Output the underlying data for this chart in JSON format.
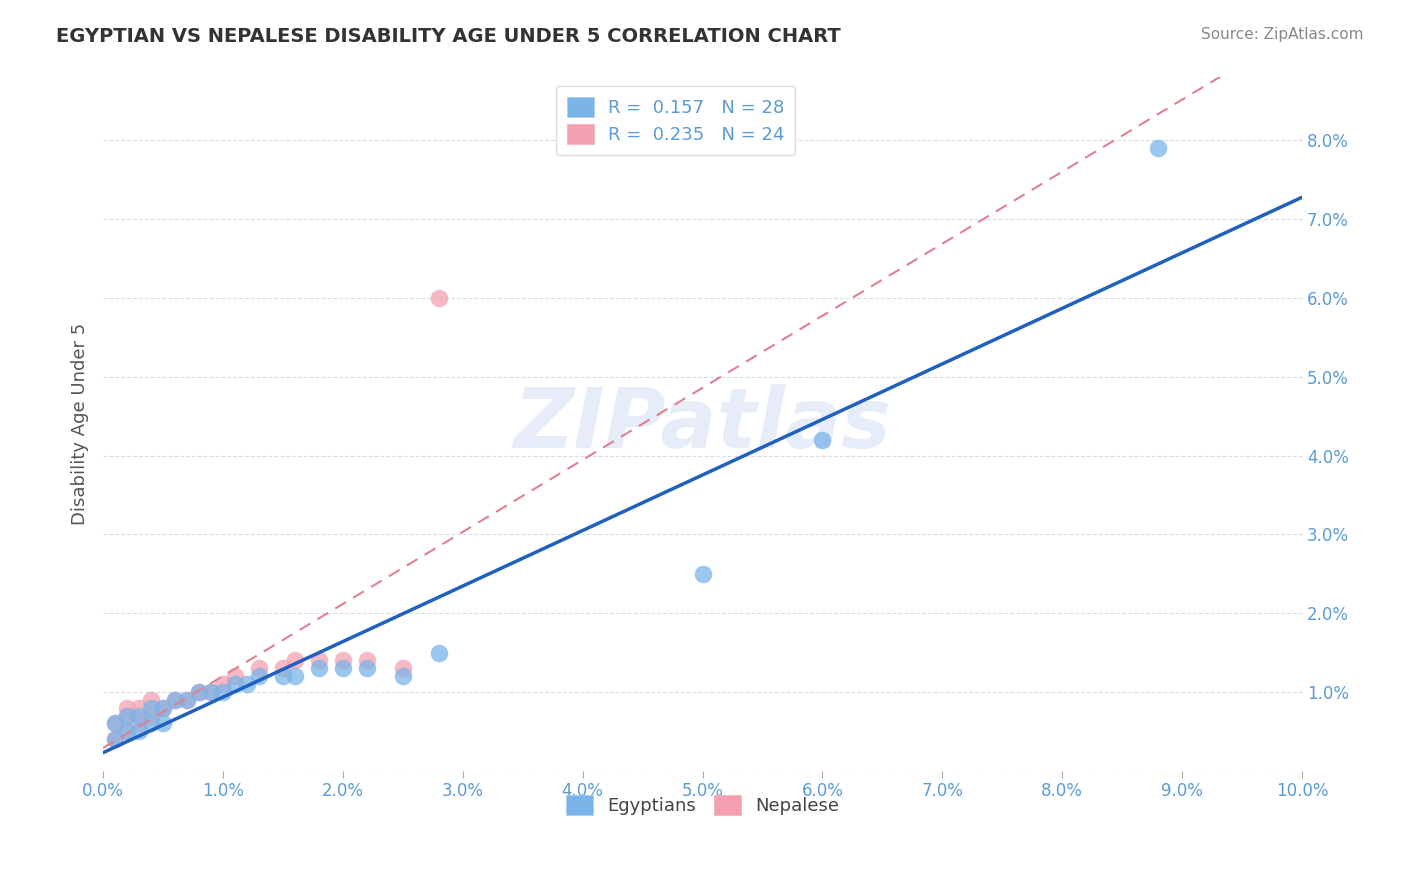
{
  "title": "EGYPTIAN VS NEPALESE DISABILITY AGE UNDER 5 CORRELATION CHART",
  "source": "Source: ZipAtlas.com",
  "ylabel": "Disability Age Under 5",
  "xlim": [
    0.0,
    0.1
  ],
  "ylim": [
    0.0,
    0.088
  ],
  "xticks": [
    0.0,
    0.01,
    0.02,
    0.03,
    0.04,
    0.05,
    0.06,
    0.07,
    0.08,
    0.09,
    0.1
  ],
  "yticks_right": [
    0.0,
    0.01,
    0.02,
    0.03,
    0.04,
    0.05,
    0.06,
    0.07,
    0.08
  ],
  "ytick_right_labels": [
    "",
    "1.0%",
    "2.0%",
    "3.0%",
    "4.0%",
    "5.0%",
    "6.0%",
    "7.0%",
    "8.0%"
  ],
  "xtick_labels": [
    "0.0%",
    "1.0%",
    "2.0%",
    "3.0%",
    "4.0%",
    "5.0%",
    "6.0%",
    "7.0%",
    "8.0%",
    "9.0%",
    "10.0%"
  ],
  "egyptian_color": "#7ab4e8",
  "nepalese_color": "#f4a0b0",
  "egyptian_R": 0.157,
  "egyptian_N": 28,
  "nepalese_R": 0.235,
  "nepalese_N": 24,
  "title_color": "#333333",
  "axis_color": "#5b9bd5",
  "watermark": "ZIPatlas",
  "egyptian_x": [
    0.001,
    0.001,
    0.002,
    0.002,
    0.003,
    0.003,
    0.004,
    0.004,
    0.005,
    0.005,
    0.006,
    0.007,
    0.008,
    0.009,
    0.01,
    0.011,
    0.012,
    0.013,
    0.015,
    0.016,
    0.018,
    0.02,
    0.022,
    0.025,
    0.028,
    0.05,
    0.088,
    0.06
  ],
  "egyptian_y": [
    0.004,
    0.006,
    0.005,
    0.007,
    0.005,
    0.007,
    0.006,
    0.008,
    0.006,
    0.008,
    0.009,
    0.009,
    0.01,
    0.01,
    0.01,
    0.011,
    0.011,
    0.012,
    0.012,
    0.012,
    0.013,
    0.013,
    0.013,
    0.012,
    0.015,
    0.025,
    0.079,
    0.042
  ],
  "nepalese_x": [
    0.001,
    0.001,
    0.002,
    0.002,
    0.002,
    0.003,
    0.003,
    0.004,
    0.004,
    0.005,
    0.006,
    0.007,
    0.008,
    0.009,
    0.01,
    0.011,
    0.013,
    0.015,
    0.016,
    0.018,
    0.02,
    0.022,
    0.025,
    0.028
  ],
  "nepalese_y": [
    0.004,
    0.006,
    0.005,
    0.007,
    0.008,
    0.006,
    0.008,
    0.007,
    0.009,
    0.008,
    0.009,
    0.009,
    0.01,
    0.01,
    0.011,
    0.012,
    0.013,
    0.013,
    0.014,
    0.014,
    0.014,
    0.014,
    0.013,
    0.06
  ],
  "grid_color": "#d8dde8",
  "background_color": "#ffffff",
  "trendline_egyptian_color": "#2060c0",
  "trendline_nepalese_color": "#e08090"
}
